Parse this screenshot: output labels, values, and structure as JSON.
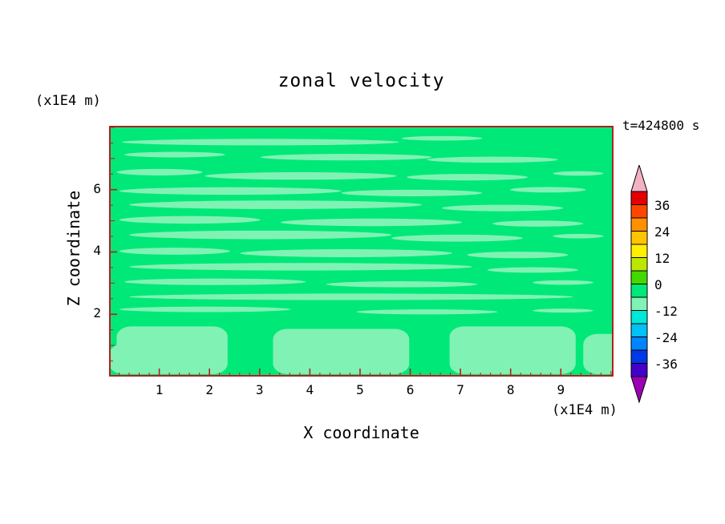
{
  "chart_data": {
    "type": "contour",
    "title": "zonal velocity",
    "time_label": "t=424800 s",
    "xlabel": "X coordinate",
    "ylabel": "Z coordinate",
    "x_units_label": "(x1E4 m)",
    "y_units_label": "(x1E4 m)",
    "xlim": [
      0,
      10.05
    ],
    "ylim": [
      0,
      8.05
    ],
    "x_major_ticks": [
      1,
      2,
      3,
      4,
      5,
      6,
      7,
      8,
      9
    ],
    "x_minor_step": 0.2,
    "y_major_ticks": [
      2,
      4,
      6
    ],
    "y_minor_step": 0.5,
    "contour_level_step": 6,
    "frame_color": "#b22020",
    "text_color": "#000000",
    "colorbar": {
      "labels": [
        "36",
        "24",
        "12",
        "0",
        "-12",
        "-24",
        "-36"
      ],
      "segment_colors_top_to_bottom": [
        "#e40000",
        "#ff4600",
        "#ff9000",
        "#ffc400",
        "#fff000",
        "#bce800",
        "#44d800",
        "#00e878",
        "#80f2b4",
        "#00e8d8",
        "#00c0f4",
        "#0084ff",
        "#0038e8",
        "#4400c8"
      ],
      "arrow_top_color": "#f2b2c2",
      "arrow_bottom_color": "#9c00b4",
      "outline_color": "#000000"
    },
    "field": {
      "base_color": "#00e878",
      "streak_color": "#80f2b4",
      "streaks": [
        {
          "x": 0.3,
          "y": 0.065,
          "w": 0.55,
          "h": 0.026
        },
        {
          "x": 0.66,
          "y": 0.05,
          "w": 0.16,
          "h": 0.018
        },
        {
          "x": 0.13,
          "y": 0.115,
          "w": 0.2,
          "h": 0.022
        },
        {
          "x": 0.47,
          "y": 0.125,
          "w": 0.34,
          "h": 0.026
        },
        {
          "x": 0.76,
          "y": 0.135,
          "w": 0.26,
          "h": 0.024
        },
        {
          "x": 0.1,
          "y": 0.185,
          "w": 0.17,
          "h": 0.026
        },
        {
          "x": 0.38,
          "y": 0.2,
          "w": 0.38,
          "h": 0.03
        },
        {
          "x": 0.71,
          "y": 0.205,
          "w": 0.24,
          "h": 0.026
        },
        {
          "x": 0.93,
          "y": 0.19,
          "w": 0.1,
          "h": 0.018
        },
        {
          "x": 0.24,
          "y": 0.26,
          "w": 0.44,
          "h": 0.03
        },
        {
          "x": 0.6,
          "y": 0.268,
          "w": 0.28,
          "h": 0.026
        },
        {
          "x": 0.87,
          "y": 0.255,
          "w": 0.15,
          "h": 0.022
        },
        {
          "x": 0.33,
          "y": 0.315,
          "w": 0.58,
          "h": 0.034
        },
        {
          "x": 0.78,
          "y": 0.328,
          "w": 0.24,
          "h": 0.026
        },
        {
          "x": 0.16,
          "y": 0.375,
          "w": 0.28,
          "h": 0.03
        },
        {
          "x": 0.52,
          "y": 0.385,
          "w": 0.36,
          "h": 0.03
        },
        {
          "x": 0.85,
          "y": 0.39,
          "w": 0.18,
          "h": 0.024
        },
        {
          "x": 0.3,
          "y": 0.435,
          "w": 0.52,
          "h": 0.034
        },
        {
          "x": 0.69,
          "y": 0.448,
          "w": 0.26,
          "h": 0.028
        },
        {
          "x": 0.93,
          "y": 0.44,
          "w": 0.1,
          "h": 0.018
        },
        {
          "x": 0.13,
          "y": 0.5,
          "w": 0.22,
          "h": 0.028
        },
        {
          "x": 0.47,
          "y": 0.508,
          "w": 0.42,
          "h": 0.032
        },
        {
          "x": 0.81,
          "y": 0.515,
          "w": 0.2,
          "h": 0.026
        },
        {
          "x": 0.38,
          "y": 0.562,
          "w": 0.68,
          "h": 0.03
        },
        {
          "x": 0.84,
          "y": 0.575,
          "w": 0.18,
          "h": 0.022
        },
        {
          "x": 0.21,
          "y": 0.622,
          "w": 0.36,
          "h": 0.026
        },
        {
          "x": 0.58,
          "y": 0.632,
          "w": 0.3,
          "h": 0.024
        },
        {
          "x": 0.9,
          "y": 0.625,
          "w": 0.12,
          "h": 0.018
        },
        {
          "x": 0.48,
          "y": 0.682,
          "w": 0.88,
          "h": 0.026
        },
        {
          "x": 0.19,
          "y": 0.732,
          "w": 0.34,
          "h": 0.022
        },
        {
          "x": 0.63,
          "y": 0.742,
          "w": 0.28,
          "h": 0.02
        },
        {
          "x": 0.9,
          "y": 0.737,
          "w": 0.12,
          "h": 0.016
        }
      ],
      "bottom_blobs": [
        {
          "x": 0.03,
          "y": 0.93,
          "w": 0.06,
          "h": 0.12
        },
        {
          "x": 0.125,
          "y": 0.895,
          "w": 0.22,
          "h": 0.19
        },
        {
          "x": 0.46,
          "y": 0.9,
          "w": 0.27,
          "h": 0.18
        },
        {
          "x": 0.8,
          "y": 0.895,
          "w": 0.25,
          "h": 0.19
        },
        {
          "x": 0.99,
          "y": 0.91,
          "w": 0.1,
          "h": 0.16
        }
      ]
    }
  }
}
